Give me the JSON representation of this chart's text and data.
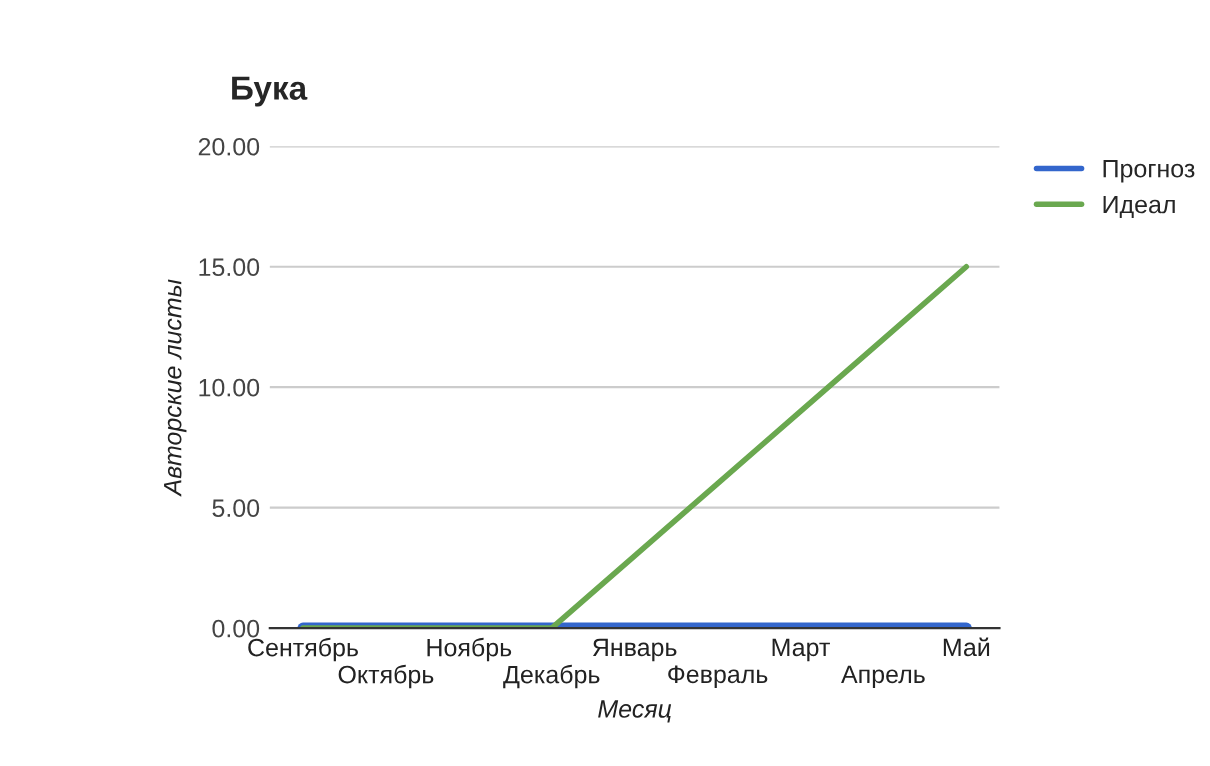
{
  "chart_data": {
    "type": "line",
    "title": "Бука",
    "xlabel": "Месяц",
    "ylabel": "Авторские листы",
    "categories": [
      "Сентябрь",
      "Октябрь",
      "Ноябрь",
      "Декабрь",
      "Январь",
      "Февраль",
      "Март",
      "Апрель",
      "Май"
    ],
    "series": [
      {
        "name": "Прогноз",
        "color": "#3366cc",
        "values": [
          0,
          0,
          0,
          0,
          0,
          0,
          0,
          0,
          0
        ]
      },
      {
        "name": "Идеал",
        "color": "#6aa84f",
        "values": [
          0,
          0,
          0,
          0,
          3,
          6,
          9,
          12,
          15
        ]
      }
    ],
    "ylim": [
      0,
      20
    ],
    "yticks": [
      {
        "value": 0,
        "label": "0.00"
      },
      {
        "value": 5,
        "label": "5.00"
      },
      {
        "value": 10,
        "label": "10.00"
      },
      {
        "value": 15,
        "label": "15.00"
      },
      {
        "value": 20,
        "label": "20.00"
      }
    ],
    "grid": "y",
    "legend": "top right"
  }
}
